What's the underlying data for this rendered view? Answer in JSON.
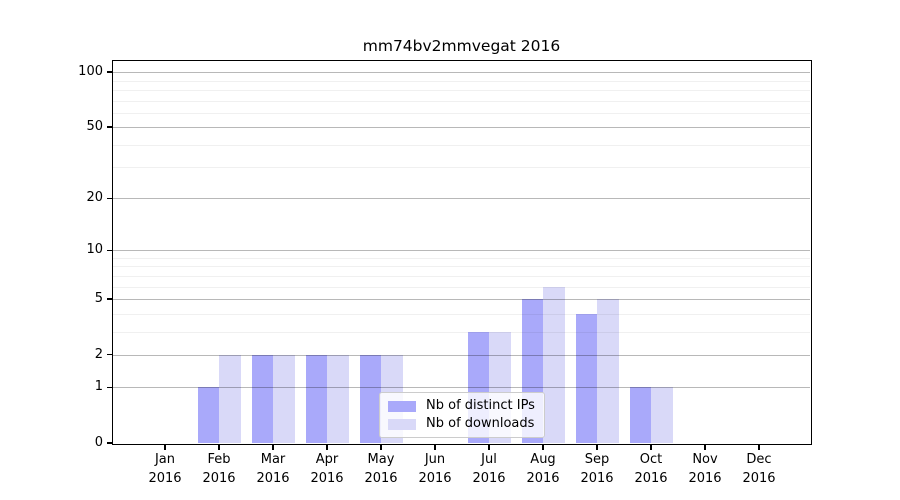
{
  "title": "mm74bv2mmvegat 2016",
  "chart_data": {
    "type": "bar",
    "title": "mm74bv2mmvegat 2016",
    "categories": [
      "Jan",
      "Feb",
      "Mar",
      "Apr",
      "May",
      "Jun",
      "Jul",
      "Aug",
      "Sep",
      "Oct",
      "Nov",
      "Dec"
    ],
    "x_year": "2016",
    "series": [
      {
        "name": "Nb of distinct IPs",
        "color": "#a9a9fa",
        "values": [
          0,
          1,
          2,
          2,
          2,
          0,
          3,
          5,
          4,
          1,
          0,
          0
        ]
      },
      {
        "name": "Nb of downloads",
        "color": "#d9d9f8",
        "values": [
          0,
          2,
          2,
          2,
          2,
          0,
          3,
          6,
          5,
          1,
          0,
          0
        ]
      }
    ],
    "xlabel": "",
    "ylabel": "",
    "yscale": "log10(1+x)",
    "ylim": [
      0,
      114
    ],
    "yticks": [
      0,
      1,
      2,
      5,
      10,
      20,
      50,
      100
    ],
    "minor_yticks": [
      3,
      4,
      6,
      7,
      8,
      9,
      30,
      40,
      60,
      70,
      80,
      90
    ],
    "grid": "horizontal major+minor, drawn above bars",
    "legend_position": "lower center",
    "background_color": "#ffffff",
    "axis_color": "#000000",
    "major_grid_color": "#b8b8b8",
    "minor_grid_color": "#efefef"
  }
}
